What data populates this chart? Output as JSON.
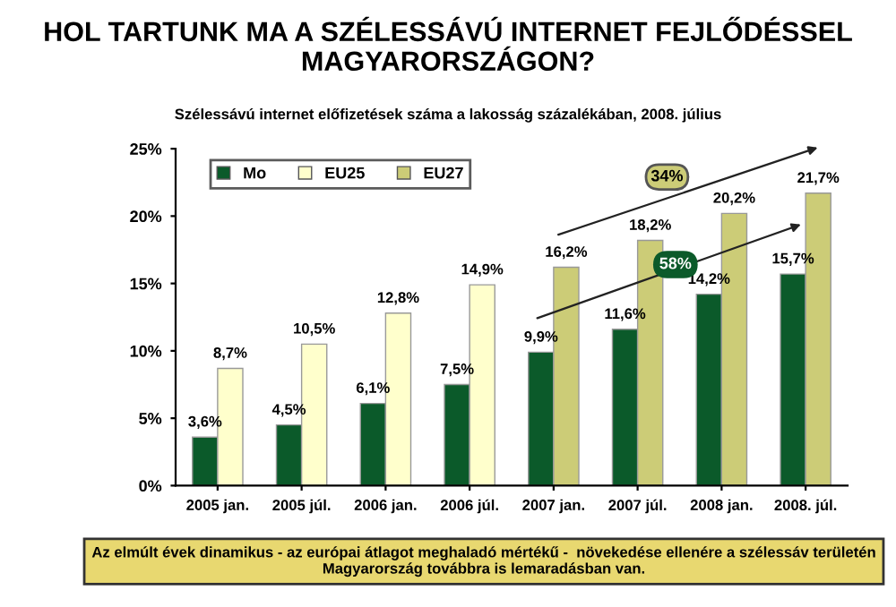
{
  "chart_data": {
    "type": "bar",
    "title": "HOL TARTUNK MA A SZÉLESSÁVÚ INTERNET FEJLŐDÉSSEL MAGYARORSZÁGON?",
    "subtitle": "Szélessávú internet előfizetések száma a lakosság százalékában, 2008. július",
    "categories": [
      "2005 jan.",
      "2005 júl.",
      "2006 jan.",
      "2006 júl.",
      "2007 jan.",
      "2007 júl.",
      "2008 jan.",
      "2008. júl."
    ],
    "series": [
      {
        "name": "Mo",
        "color": "#0b5a2a",
        "values": [
          3.6,
          4.5,
          6.1,
          7.5,
          9.9,
          11.6,
          14.2,
          15.7
        ],
        "value_labels": [
          "3,6%",
          "4,5%",
          "6,1%",
          "7,5%",
          "9,9%",
          "11,6%",
          "14,2%",
          "15,7%"
        ]
      },
      {
        "name": "EU25",
        "color": "#ffffcc",
        "values": [
          8.7,
          10.5,
          12.8,
          14.9,
          null,
          null,
          null,
          null
        ],
        "value_labels": [
          "8,7%",
          "10,5%",
          "12,8%",
          "14,9%",
          null,
          null,
          null,
          null
        ]
      },
      {
        "name": "EU27",
        "color": "#cccc77",
        "values": [
          null,
          null,
          null,
          null,
          16.2,
          18.2,
          20.2,
          21.7
        ],
        "value_labels": [
          null,
          null,
          null,
          null,
          "16,2%",
          "18,2%",
          "20,2%",
          "21,7%"
        ]
      }
    ],
    "ylim": [
      0,
      25
    ],
    "yticks": [
      {
        "value": 0,
        "label": "0%"
      },
      {
        "value": 5,
        "label": "5%"
      },
      {
        "value": 10,
        "label": "10%"
      },
      {
        "value": 15,
        "label": "15%"
      },
      {
        "value": 20,
        "label": "20%"
      },
      {
        "value": 25,
        "label": "25%"
      }
    ],
    "grid": false,
    "legend": "top left",
    "annotations": [
      "34%",
      "58%",
      "Az elmúlt évek dinamikus - az európai átlagot meghaladó mértékű -  növekedése ellenére a szélessáv területén Magyarország továbbra is lemaradásban van."
    ]
  }
}
